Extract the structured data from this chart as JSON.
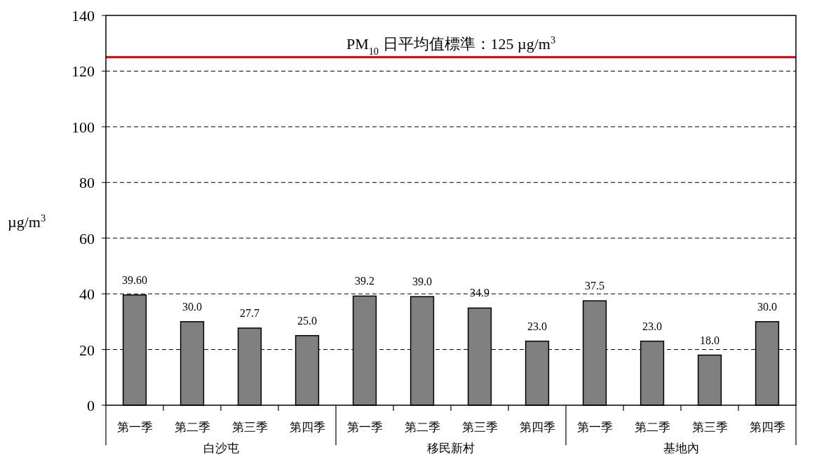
{
  "chart_data": {
    "type": "bar",
    "ylabel": "µg/m$^{3}$",
    "categories": [
      "第一季",
      "第二季",
      "第三季",
      "第四季",
      "第一季",
      "第二季",
      "第三季",
      "第四季",
      "第一季",
      "第二季",
      "第三季",
      "第四季"
    ],
    "values": [
      39.6,
      30.0,
      27.7,
      25.0,
      39.2,
      39.0,
      34.9,
      23.0,
      37.5,
      23.0,
      18.0,
      30.0
    ],
    "value_labels": [
      "39.60",
      "30.0",
      "27.7",
      "25.0",
      "39.2",
      "39.0",
      "34.9",
      "23.0",
      "37.5",
      "23.0",
      "18.0",
      "30.0"
    ],
    "color": "#808080",
    "ylim": [
      0,
      140
    ],
    "yticks": [
      0,
      20,
      40,
      60,
      80,
      100,
      120,
      140
    ],
    "grid": "y",
    "ref_lines": [
      {
        "axis": "y",
        "value": 125,
        "label": "PM$_{10}$ 日平均值標準：125 µg/m$^{3}$",
        "color": "#ff0000"
      }
    ],
    "annotations": [
      "白沙屯",
      "移民新村",
      "基地內"
    ]
  }
}
